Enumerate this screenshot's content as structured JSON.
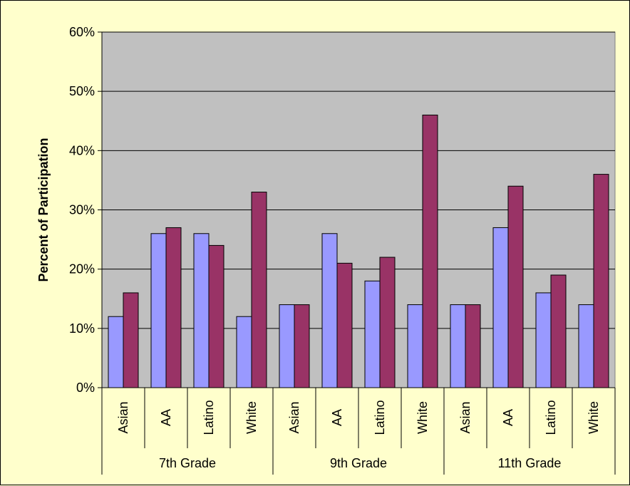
{
  "chart_data": {
    "type": "bar",
    "title": "",
    "xlabel": "",
    "ylabel": "Percent of Participation",
    "ylim": [
      0,
      60
    ],
    "yticks": [
      "0%",
      "10%",
      "20%",
      "30%",
      "40%",
      "50%",
      "60%"
    ],
    "grid": true,
    "legend": "none",
    "groups": [
      {
        "name": "7th Grade",
        "categories": [
          "Asian",
          "AA",
          "Latino",
          "White"
        ]
      },
      {
        "name": "9th Grade",
        "categories": [
          "Asian",
          "AA",
          "Latino",
          "White"
        ]
      },
      {
        "name": "11th Grade",
        "categories": [
          "Asian",
          "AA",
          "Latino",
          "White"
        ]
      }
    ],
    "series": [
      {
        "values": [
          12,
          26,
          26,
          12,
          14,
          26,
          18,
          14,
          14,
          27,
          16,
          14
        ],
        "color": "#9999ff"
      },
      {
        "values": [
          16,
          27,
          24,
          33,
          14,
          21,
          22,
          46,
          14,
          34,
          19,
          36
        ],
        "color": "#993366"
      }
    ],
    "plot_background": "#c0c0c0",
    "page_background": "#ffffcc"
  }
}
